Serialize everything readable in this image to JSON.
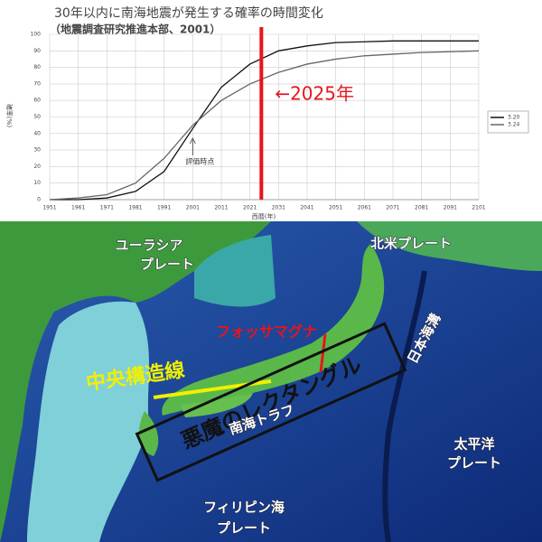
{
  "chart_data": {
    "type": "line",
    "title": "30年以内に南海地震が発生する確率の時間変化",
    "subtitle": "（地震調査研究推進本部、2001）",
    "x_label": "西暦(年)",
    "y_label": "確率(%)",
    "x": [
      1951,
      1961,
      1971,
      1981,
      1991,
      2001,
      2011,
      2021,
      2031,
      2041,
      2051,
      2061,
      2071,
      2081,
      2091,
      2101
    ],
    "series": [
      {
        "name": "3.20",
        "color": "#111111",
        "values": [
          0,
          0,
          1,
          5,
          17,
          43,
          68,
          82,
          90,
          93,
          95,
          95.5,
          96,
          96,
          96,
          96
        ]
      },
      {
        "name": "3.24",
        "color": "#666666",
        "values": [
          0,
          1,
          3,
          10,
          25,
          45,
          60,
          70,
          77,
          82,
          85,
          87,
          88,
          89,
          89.5,
          90
        ]
      }
    ],
    "xlim": [
      1951,
      2101
    ],
    "xticks": [
      1951,
      1961,
      1971,
      1981,
      1991,
      2001,
      2011,
      2021,
      2031,
      2041,
      2051,
      2061,
      2071,
      2081,
      2091,
      2101
    ],
    "ylim": [
      0,
      100
    ],
    "yticks": [
      0,
      10,
      20,
      30,
      40,
      50,
      60,
      70,
      80,
      90,
      100
    ],
    "grid": true,
    "legend": "right",
    "vline": {
      "value": 2025,
      "label": "←2025年",
      "color": "#e8141c"
    },
    "evaluation_point": {
      "value": 2001,
      "label": "評価時点"
    }
  },
  "map": {
    "eurasia_plate": [
      "ユーラシア",
      "プレート"
    ],
    "north_american_plate": "北米プレート",
    "fossa_magna": "フォッサマグナ",
    "median_tectonic_line": "中央構造線",
    "nankai_trough": "南海トラフ",
    "japan_trench": "日本海溝",
    "pacific_plate": [
      "太平洋",
      "プレート"
    ],
    "philippine_sea_plate": [
      "フィリピン海",
      "プレート"
    ],
    "devils_rectangle": "悪魔のレクタングル"
  }
}
